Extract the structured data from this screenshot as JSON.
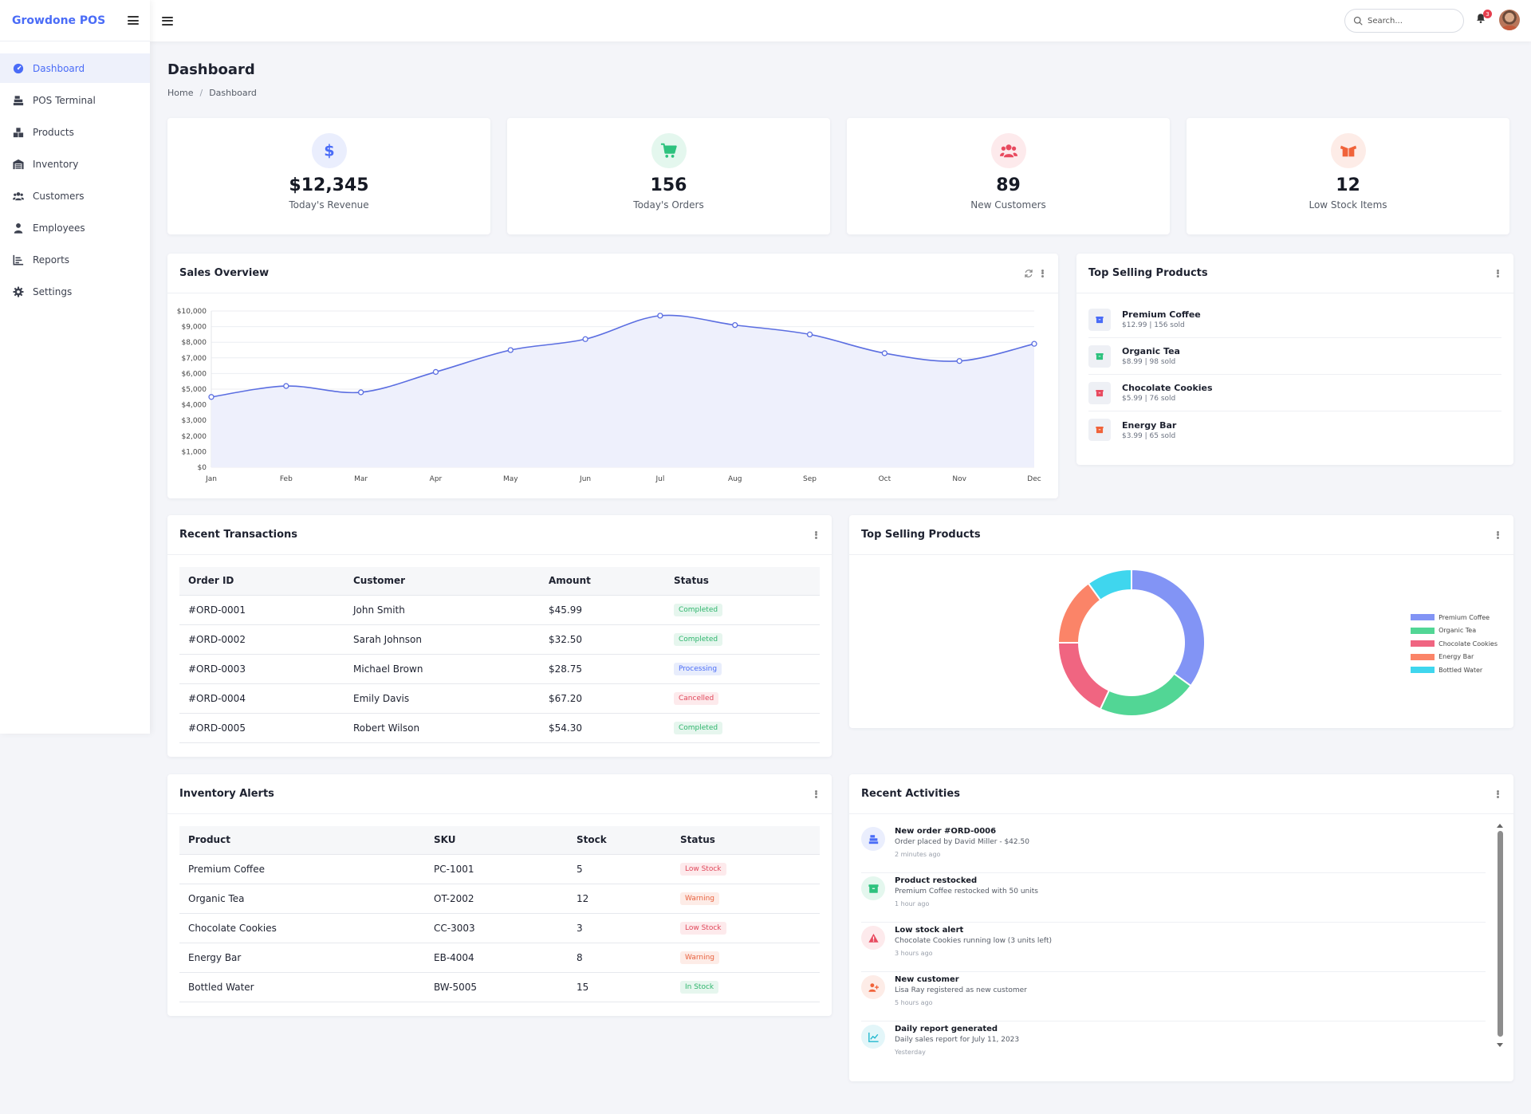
{
  "app": {
    "brand": "Growdone POS"
  },
  "sidebar": {
    "items": [
      {
        "label": "Dashboard",
        "icon": "dashboard-icon",
        "active": true
      },
      {
        "label": "POS Terminal",
        "icon": "cash-register-icon"
      },
      {
        "label": "Products",
        "icon": "boxes-icon"
      },
      {
        "label": "Inventory",
        "icon": "warehouse-icon"
      },
      {
        "label": "Customers",
        "icon": "users-icon"
      },
      {
        "label": "Employees",
        "icon": "user-tie-icon"
      },
      {
        "label": "Reports",
        "icon": "chart-icon"
      },
      {
        "label": "Settings",
        "icon": "gear-icon"
      }
    ]
  },
  "topbar": {
    "search_placeholder": "Search...",
    "notification_count": "3"
  },
  "page": {
    "title": "Dashboard",
    "breadcrumb": [
      "Home",
      "Dashboard"
    ]
  },
  "stats": [
    {
      "value": "$12,345",
      "label": "Today's Revenue",
      "icon": "dollar-icon",
      "color": "#4a6cf7",
      "bg": "#eaeefd"
    },
    {
      "value": "156",
      "label": "Today's Orders",
      "icon": "cart-icon",
      "color": "#2ec27e",
      "bg": "#e4f7ee"
    },
    {
      "value": "89",
      "label": "New Customers",
      "icon": "users-icon",
      "color": "#e84a5f",
      "bg": "#fdeaec"
    },
    {
      "value": "12",
      "label": "Low Stock Items",
      "icon": "box-open-icon",
      "color": "#f0633a",
      "bg": "#fdece7"
    }
  ],
  "sales_overview": {
    "title": "Sales Overview"
  },
  "top_products": {
    "title": "Top Selling Products",
    "items": [
      {
        "name": "Premium Coffee",
        "meta": "$12.99 | 156 sold",
        "color": "#4a6cf7"
      },
      {
        "name": "Organic Tea",
        "meta": "$8.99 | 98 sold",
        "color": "#2ec27e"
      },
      {
        "name": "Chocolate Cookies",
        "meta": "$5.99 | 76 sold",
        "color": "#e84a5f"
      },
      {
        "name": "Energy Bar",
        "meta": "$3.99 | 65 sold",
        "color": "#f0633a"
      }
    ]
  },
  "transactions": {
    "title": "Recent Transactions",
    "columns": [
      "Order ID",
      "Customer",
      "Amount",
      "Status"
    ],
    "rows": [
      {
        "id": "#ORD-0001",
        "customer": "John Smith",
        "amount": "$45.99",
        "status": "Completed",
        "tone": "green"
      },
      {
        "id": "#ORD-0002",
        "customer": "Sarah Johnson",
        "amount": "$32.50",
        "status": "Completed",
        "tone": "green"
      },
      {
        "id": "#ORD-0003",
        "customer": "Michael Brown",
        "amount": "$28.75",
        "status": "Processing",
        "tone": "blue"
      },
      {
        "id": "#ORD-0004",
        "customer": "Emily Davis",
        "amount": "$67.20",
        "status": "Cancelled",
        "tone": "red"
      },
      {
        "id": "#ORD-0005",
        "customer": "Robert Wilson",
        "amount": "$54.30",
        "status": "Completed",
        "tone": "green"
      }
    ]
  },
  "inventory": {
    "title": "Inventory Alerts",
    "columns": [
      "Product",
      "SKU",
      "Stock",
      "Status"
    ],
    "rows": [
      {
        "product": "Premium Coffee",
        "sku": "PC-1001",
        "stock": "5",
        "status": "Low Stock",
        "tone": "red"
      },
      {
        "product": "Organic Tea",
        "sku": "OT-2002",
        "stock": "12",
        "status": "Warning",
        "tone": "orange"
      },
      {
        "product": "Chocolate Cookies",
        "sku": "CC-3003",
        "stock": "3",
        "status": "Low Stock",
        "tone": "red"
      },
      {
        "product": "Energy Bar",
        "sku": "EB-4004",
        "stock": "8",
        "status": "Warning",
        "tone": "orange"
      },
      {
        "product": "Bottled Water",
        "sku": "BW-5005",
        "stock": "15",
        "status": "In Stock",
        "tone": "green"
      }
    ]
  },
  "activities": {
    "title": "Recent Activities",
    "items": [
      {
        "title": "New order #ORD-0006",
        "desc": "Order placed by David Miller - $42.50",
        "time": "2 minutes ago",
        "icon": "cash-register-icon",
        "color": "#4a6cf7",
        "bg": "#eaeefd"
      },
      {
        "title": "Product restocked",
        "desc": "Premium Coffee restocked with 50 units",
        "time": "1 hour ago",
        "icon": "box-icon",
        "color": "#2ec27e",
        "bg": "#e4f7ee"
      },
      {
        "title": "Low stock alert",
        "desc": "Chocolate Cookies running low (3 units left)",
        "time": "3 hours ago",
        "icon": "warning-icon",
        "color": "#e84a5f",
        "bg": "#fdeaec"
      },
      {
        "title": "New customer",
        "desc": "Lisa Ray registered as new customer",
        "time": "5 hours ago",
        "icon": "user-plus-icon",
        "color": "#f0633a",
        "bg": "#fdece7"
      },
      {
        "title": "Daily report generated",
        "desc": "Daily sales report for July 11, 2023",
        "time": "Yesterday",
        "icon": "chart-line-icon",
        "color": "#22b8cf",
        "bg": "#e3f6f9"
      }
    ]
  },
  "chart_data": [
    {
      "type": "area",
      "title": "Sales Overview",
      "categories": [
        "Jan",
        "Feb",
        "Mar",
        "Apr",
        "May",
        "Jun",
        "Jul",
        "Aug",
        "Sep",
        "Oct",
        "Nov",
        "Dec"
      ],
      "series": [
        {
          "values": [
            4500,
            5200,
            4800,
            6100,
            7500,
            8200,
            9700,
            9100,
            8500,
            7300,
            6800,
            7900
          ],
          "color": "#5b6ee1"
        }
      ],
      "ylim": [
        0,
        10000
      ],
      "yticks": [
        "$0",
        "$1,000",
        "$2,000",
        "$3,000",
        "$4,000",
        "$5,000",
        "$6,000",
        "$7,000",
        "$8,000",
        "$9,000",
        "$10,000"
      ],
      "grid": true
    },
    {
      "type": "pie",
      "title": "Top Selling Products",
      "donut": true,
      "legend_position": "right",
      "categories": [
        "Premium Coffee",
        "Organic Tea",
        "Chocolate Cookies",
        "Energy Bar",
        "Bottled Water"
      ],
      "values": [
        35,
        22,
        18,
        15,
        10
      ],
      "colors": [
        "#8294f5",
        "#52d695",
        "#f06581",
        "#fb8468",
        "#3fd6ee"
      ]
    }
  ]
}
